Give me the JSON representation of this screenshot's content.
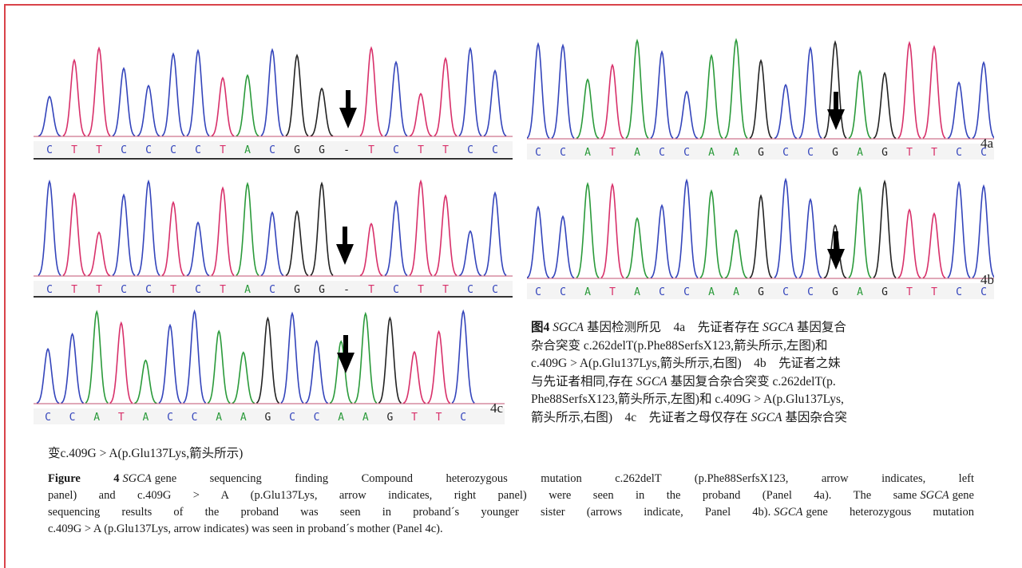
{
  "panels": [
    {
      "sequence": [
        "C",
        "T",
        "T",
        "C",
        "C",
        "C",
        "C",
        "T",
        "A",
        "C",
        "G",
        "G",
        "-",
        "T",
        "C",
        "T",
        "T",
        "C",
        "C"
      ]
    },
    {
      "sequence": [
        "C",
        "T",
        "T",
        "C",
        "C",
        "T",
        "C",
        "T",
        "A",
        "C",
        "G",
        "G",
        "-",
        "T",
        "C",
        "T",
        "T",
        "C",
        "C"
      ]
    },
    {
      "sequence": [
        "C",
        "C",
        "A",
        "T",
        "A",
        "C",
        "C",
        "A",
        "A",
        "G",
        "C",
        "C",
        "A",
        "A",
        "G",
        "T",
        "T",
        "C"
      ],
      "label": "4c"
    },
    {
      "sequence": [
        "C",
        "C",
        "A",
        "T",
        "A",
        "C",
        "C",
        "A",
        "A",
        "G",
        "C",
        "C",
        "G",
        "A",
        "G",
        "T",
        "T",
        "C",
        "C"
      ],
      "label": "4a"
    },
    {
      "sequence": [
        "C",
        "C",
        "A",
        "T",
        "A",
        "C",
        "C",
        "A",
        "A",
        "G",
        "C",
        "C",
        "G",
        "A",
        "G",
        "T",
        "T",
        "C",
        "C"
      ],
      "label": "4b"
    }
  ],
  "caption_cn": {
    "lines": [
      [
        "图4",
        "SGCA",
        "基因检测所见　4a　先证者存在",
        "SGCA",
        "基因复合"
      ],
      [
        "杂合突变 c.262delT(p.Phe88SerfsX123,箭头所示,左图)和"
      ],
      [
        "c.409G > A(p.Glu137Lys,箭头所示,右图)　4b　先证者之妹"
      ],
      [
        "与先证者相同,存在",
        "SGCA",
        "基因复合杂合突变 c.262delT(p."
      ],
      [
        "Phe88SerfsX123,箭头所示,左图)和 c.409G > A(p.Glu137Lys,"
      ],
      [
        "箭头所示,右图)　4c　先证者之母仅存在",
        "SGCA",
        "基因杂合突"
      ],
      [
        "变c.409G > A(p.Glu137Lys,箭头所示)"
      ]
    ]
  },
  "caption_en": {
    "lines": [
      [
        "Figure 4",
        "SGCA",
        "gene sequencing finding   Compound heterozygous mutation c.262delT (p.Phe88SerfsX123, arrow indicates, left"
      ],
      [
        "panel) and c.409G > A (p.Glu137Lys, arrow indicates, right panel) were seen in the proband (Panel 4a). The same",
        "SGCA",
        "gene"
      ],
      [
        "sequencing results of the proband was seen in proband´s younger sister (arrows indicate, Panel 4b).",
        "SGCA",
        "gene heterozygous mutation"
      ],
      [
        "c.409G > A (p.Glu137Lys, arrow indicates) was seen in proband´s mother (Panel 4c)."
      ]
    ]
  }
}
